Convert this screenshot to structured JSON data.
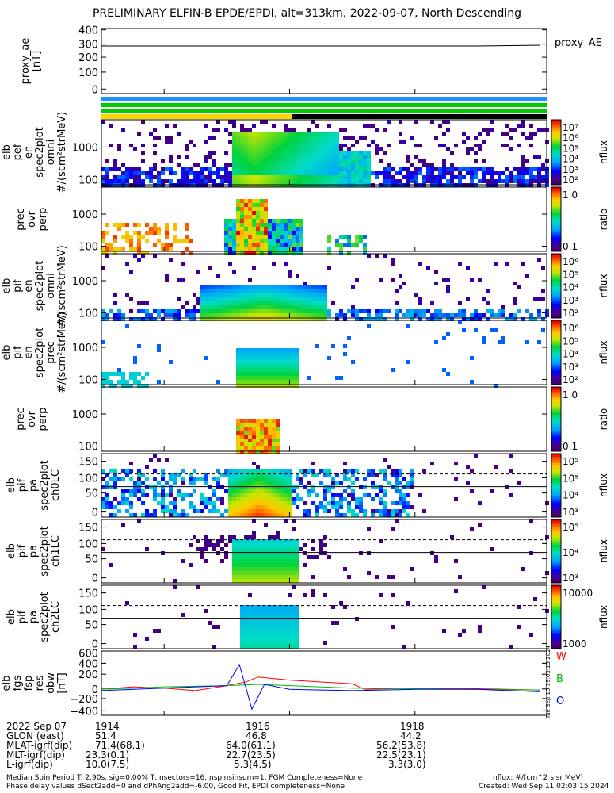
{
  "title": "PRELIMINARY ELFIN-B EPDE/EPDI, alt=313km, 2022-09-07, North Descending",
  "panels": [
    {
      "id": "proxy_ae",
      "ylabel": [
        "proxy_ae",
        "[nT]"
      ],
      "ticks": [
        "400",
        "300",
        "200",
        "100",
        "0"
      ],
      "legend": "proxy_AE"
    },
    {
      "id": "elb_pef_en_spec2plot_omni",
      "ylabel": [
        "elb",
        "pef",
        "en",
        "spec2plot",
        "omni",
        "#/(scm²strMeV)"
      ],
      "ticks": [
        "1000",
        "100"
      ],
      "cbar": {
        "ticks": [
          "10⁷",
          "10⁶",
          "10⁵",
          "10⁴",
          "10³",
          "10²"
        ],
        "label": "nflux"
      }
    },
    {
      "id": "prec_ovr_perp_e",
      "ylabel": [
        "prec",
        "ovr",
        "perp"
      ],
      "ticks": [
        "1000",
        "100"
      ],
      "cbar": {
        "ticks": [
          "1.0",
          "0.1"
        ],
        "label": "ratio"
      }
    },
    {
      "id": "elb_pif_en_spec2plot_omni",
      "ylabel": [
        "elb",
        "pif",
        "en",
        "spec2plot",
        "omni",
        "#/(scm²strMeV)"
      ],
      "ticks": [
        "1000",
        "100"
      ],
      "cbar": {
        "ticks": [
          "10⁶",
          "10⁵",
          "10⁴",
          "10³",
          "10²"
        ],
        "label": "nflux"
      }
    },
    {
      "id": "elb_pif_en_spec2plot_prec",
      "ylabel": [
        "elb",
        "pif",
        "en",
        "spec2plot",
        "prec",
        "#/(scm²strMeV)"
      ],
      "ticks": [
        "1000",
        "100"
      ],
      "cbar": {
        "ticks": [
          "10⁶",
          "10⁵",
          "10⁴",
          "10³",
          "10²"
        ],
        "label": "nflux"
      }
    },
    {
      "id": "prec_ovr_perp_i",
      "ylabel": [
        "prec",
        "ovr",
        "perp"
      ],
      "ticks": [
        "1000",
        "100"
      ],
      "cbar": {
        "ticks": [
          "1.0",
          "0.1"
        ],
        "label": "ratio"
      }
    },
    {
      "id": "elb_pif_pa_spec2plot_ch0LC",
      "ylabel": [
        "elb",
        "pif",
        "pa",
        "spec2plot",
        "ch0LC"
      ],
      "ticks": [
        "150",
        "100",
        "50",
        "0"
      ],
      "cbar": {
        "ticks": [
          "10⁵",
          "10⁵",
          "10⁴",
          "10³"
        ],
        "label": "nflux"
      }
    },
    {
      "id": "elb_pif_pa_spec2plot_ch1LC",
      "ylabel": [
        "elb",
        "pif",
        "pa",
        "spec2plot",
        "ch1LC"
      ],
      "ticks": [
        "150",
        "100",
        "50",
        "0"
      ],
      "cbar": {
        "ticks": [
          "10⁵",
          "10⁴",
          "10³"
        ],
        "label": "nflux"
      }
    },
    {
      "id": "elb_pif_pa_spec2plot_ch2LC",
      "ylabel": [
        "elb",
        "pif",
        "pa",
        "spec2plot",
        "ch2LC"
      ],
      "ticks": [
        "150",
        "100",
        "50",
        "0"
      ],
      "cbar": {
        "ticks": [
          "10000",
          "1000"
        ],
        "label": "nflux"
      }
    },
    {
      "id": "elb_fgs_fsp_res_obw",
      "ylabel": [
        "elb",
        "fgs",
        "fsp",
        "res",
        "obw",
        "[nT]"
      ],
      "ticks": [
        "600",
        "400",
        "200",
        "0",
        "−200",
        "−400"
      ],
      "legend": [
        "W",
        "B",
        "O"
      ]
    }
  ],
  "colors": {
    "W": "#ff0000",
    "B": "#00bb00",
    "O": "#0000ff",
    "yellow": "#ffd700",
    "green": "#00cc00",
    "blue": "#1e90ff",
    "black": "#000000"
  },
  "chart_data": {
    "type": "spectrogram",
    "x_ticks": [
      "1914",
      "1916",
      "1918"
    ],
    "proxy_ae": {
      "x": [
        1913.0,
        1916.0,
        1919.0,
        1920.0
      ],
      "y": [
        300,
        300,
        300,
        305
      ]
    },
    "fgs_res_obw": {
      "W": {
        "x": [
          1913.0,
          1913.5,
          1914.0,
          1914.5,
          1915.0,
          1915.3,
          1915.5,
          1916.0,
          1916.5,
          1917.0,
          1917.2,
          1918.0,
          1919.0,
          1920.0
        ],
        "y": [
          0,
          40,
          20,
          -20,
          60,
          120,
          200,
          150,
          120,
          90,
          0,
          20,
          10,
          -10
        ]
      },
      "B": {
        "x": [
          1913.0,
          1913.5,
          1914.0,
          1914.5,
          1915.0,
          1915.5,
          1916.0,
          1917.0,
          1918.0,
          1919.0,
          1920.0
        ],
        "y": [
          0,
          20,
          40,
          50,
          60,
          80,
          60,
          20,
          10,
          0,
          -10
        ]
      },
      "O": {
        "x": [
          1913.0,
          1914.0,
          1914.5,
          1915.0,
          1915.2,
          1915.4,
          1915.6,
          1916.0,
          1917.0,
          1918.0,
          1919.0,
          1920.0
        ],
        "y": [
          -20,
          20,
          40,
          60,
          400,
          -320,
          80,
          0,
          -20,
          0,
          0,
          -40
        ]
      }
    }
  },
  "ephem": [
    {
      "label": "2022 Sep 07",
      "v": [
        "1914",
        "1916",
        "1918"
      ]
    },
    {
      "label": "GLON (east)",
      "v": [
        "51.4",
        "46.8",
        "44.2"
      ]
    },
    {
      "label": "MLAT-igrf(dip)",
      "v": [
        "71.4(68.1)",
        "64.0(61.1)",
        "56.2(53.8)"
      ]
    },
    {
      "label": "MLT-igrf(dip)",
      "v": [
        "23.3(0.1)",
        "22.7(23.5)",
        "22.5(23.1)"
      ]
    },
    {
      "label": "L-igrf(dip)",
      "v": [
        "10.0(7.5)",
        "5.3(4.5)",
        "3.3(3.0)"
      ]
    }
  ],
  "footer": {
    "line1": "Median Spin Period T: 2.90s, sig=0.00% T, nsectors=16, nspinsinsum=1, FGM Completeness=None",
    "line2": "Phase delay values dSect2add=0 and dPhAng2add=-6.00, Good Fit, EPDI completeness=None",
    "unit": "nflux: #/(cm^2 s sr MeV)",
    "created": "Created: Wed Sep 11 02:03:15 2024",
    "side": "Tue Sep 10 19:03:15 2024"
  }
}
